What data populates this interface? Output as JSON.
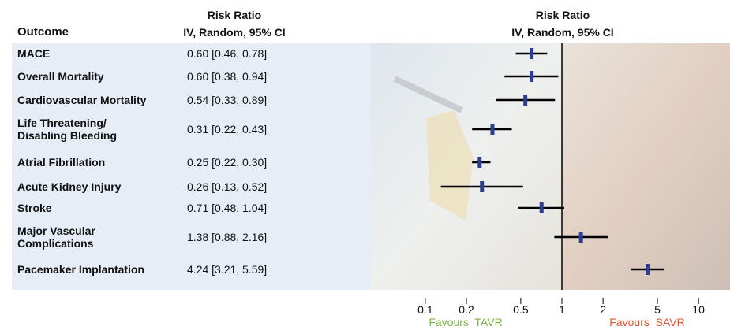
{
  "chart_data": {
    "type": "forest",
    "outcome_header": "Outcome",
    "estimate_header": {
      "title": "Risk Ratio",
      "subtitle": "IV, Random, 95% CI"
    },
    "plot_header": {
      "title": "Risk Ratio",
      "subtitle": "IV, Random, 95% CI"
    },
    "categories": [
      "MACE",
      "Overall Mortality",
      "Cardiovascular Mortality",
      "Life Threatening/\nDisabling Bleeding",
      "Atrial Fibrillation",
      "Acute Kidney Injury",
      "Stroke",
      "Major Vascular\nComplications",
      "Pacemaker Implantation"
    ],
    "values": [
      0.6,
      0.6,
      0.54,
      0.31,
      0.25,
      0.26,
      0.71,
      1.38,
      4.24
    ],
    "lower": [
      0.46,
      0.38,
      0.33,
      0.22,
      0.22,
      0.13,
      0.48,
      0.88,
      3.21
    ],
    "upper": [
      0.78,
      0.94,
      0.89,
      0.43,
      0.3,
      0.52,
      1.04,
      2.16,
      5.59
    ],
    "value_labels": [
      "0.60 [0.46, 0.78]",
      "0.60 [0.38, 0.94]",
      "0.54 [0.33, 0.89]",
      "0.31 [0.22, 0.43]",
      "0.25 [0.22, 0.30]",
      "0.26 [0.13, 0.52]",
      "0.71 [0.48, 1.04]",
      "1.38 [0.88, 2.16]",
      "4.24 [3.21, 5.59]"
    ],
    "color": "#2d3e91",
    "ci_color": "#000000",
    "xlim": [
      0.04,
      17
    ],
    "xticks": [
      0.1,
      0.2,
      0.5,
      1,
      2,
      5,
      10
    ],
    "log_x": true,
    "favours_left": {
      "text": "Favours  TAVR",
      "color": "#78b444"
    },
    "favours_right": {
      "text": "Favours  SAVR",
      "color": "#e0562a"
    }
  }
}
